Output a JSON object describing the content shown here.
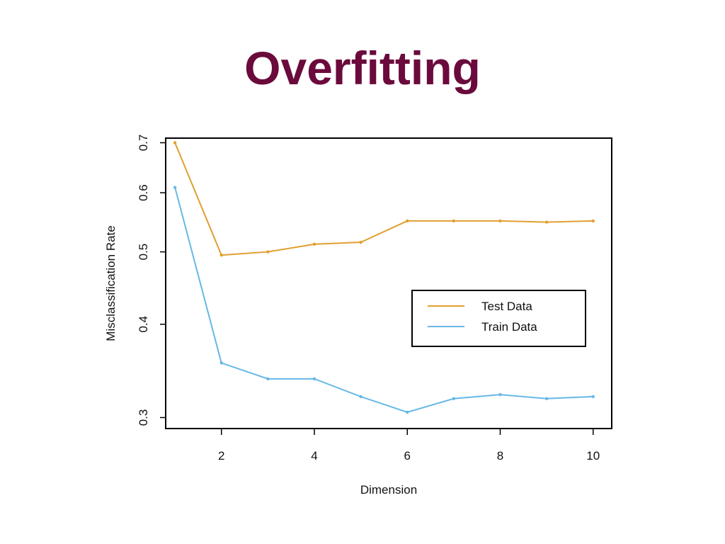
{
  "slide": {
    "title": "Overfitting"
  },
  "chart_data": {
    "type": "line",
    "title": "",
    "xlabel": "Dimension",
    "ylabel": "Misclassification Rate",
    "x": [
      1,
      2,
      3,
      4,
      5,
      6,
      7,
      8,
      9,
      10
    ],
    "xlim": [
      0.8,
      10.4
    ],
    "ylim": [
      0.29,
      0.71
    ],
    "y_scale": "log",
    "x_ticks": [
      2,
      4,
      6,
      8,
      10
    ],
    "y_ticks": [
      0.3,
      0.4,
      0.5,
      0.6,
      0.7
    ],
    "grid": false,
    "legend_position": "center-right",
    "series": [
      {
        "name": "Test Data",
        "color": "#e0a030",
        "values": [
          0.7,
          0.495,
          0.5,
          0.512,
          0.515,
          0.55,
          0.55,
          0.55,
          0.548,
          0.55
        ]
      },
      {
        "name": "Train Data",
        "color": "#66b8e6",
        "values": [
          0.61,
          0.355,
          0.338,
          0.338,
          0.32,
          0.305,
          0.318,
          0.322,
          0.318,
          0.32
        ]
      }
    ]
  }
}
